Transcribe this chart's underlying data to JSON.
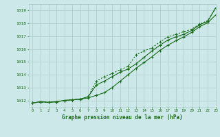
{
  "xlabel": "Graphe pression niveau de la mer (hPa)",
  "ylim": [
    1011.5,
    1019.5
  ],
  "xlim": [
    -0.5,
    23
  ],
  "yticks": [
    1012,
    1013,
    1014,
    1015,
    1016,
    1017,
    1018,
    1019
  ],
  "xticks": [
    0,
    1,
    2,
    3,
    4,
    5,
    6,
    7,
    8,
    9,
    10,
    11,
    12,
    13,
    14,
    15,
    16,
    17,
    18,
    19,
    20,
    21,
    22,
    23
  ],
  "bg_color": "#cce8e8",
  "grid_color": "#aacccc",
  "line_color": "#1a6b1a",
  "line1": [
    1011.8,
    1011.9,
    1011.85,
    1011.9,
    1012.0,
    1012.05,
    1012.1,
    1012.2,
    1012.4,
    1012.6,
    1013.0,
    1013.5,
    1014.0,
    1014.5,
    1014.95,
    1015.4,
    1015.9,
    1016.3,
    1016.65,
    1016.95,
    1017.3,
    1017.75,
    1018.05,
    1018.65
  ],
  "line2": [
    1011.8,
    1011.9,
    1011.85,
    1011.9,
    1012.0,
    1012.05,
    1012.1,
    1012.3,
    1013.2,
    1013.5,
    1013.85,
    1014.2,
    1014.45,
    1014.85,
    1015.35,
    1015.85,
    1016.3,
    1016.7,
    1016.95,
    1017.15,
    1017.45,
    1017.9,
    1018.15,
    1019.2
  ],
  "line3": [
    1011.8,
    1011.9,
    1011.85,
    1011.9,
    1012.0,
    1012.05,
    1012.1,
    1012.3,
    1013.5,
    1013.85,
    1014.1,
    1014.4,
    1014.65,
    1015.55,
    1015.85,
    1016.1,
    1016.55,
    1016.95,
    1017.15,
    1017.35,
    1017.55,
    1017.95,
    1018.2,
    1019.2
  ]
}
